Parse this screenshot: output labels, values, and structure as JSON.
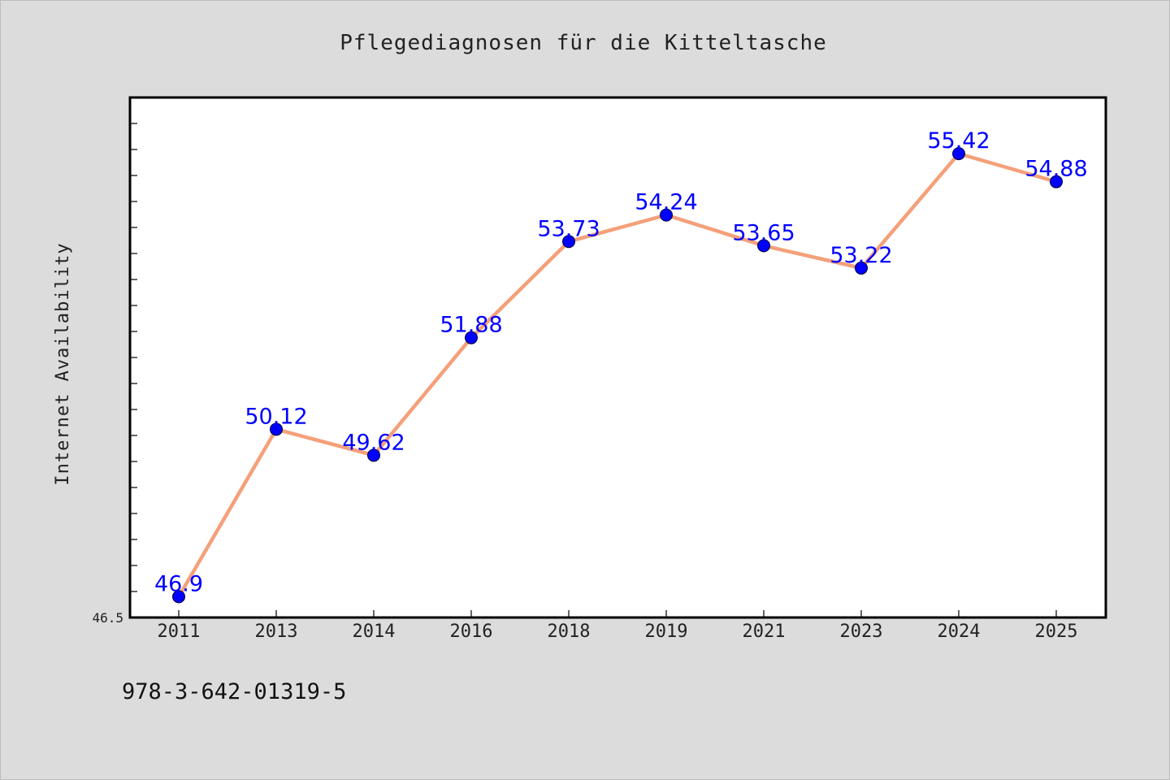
{
  "chart_data": {
    "type": "line",
    "title": "Pflegediagnosen für die Kitteltasche",
    "xlabel": "",
    "ylabel": "Internet Availability",
    "categories": [
      "2011",
      "2013",
      "2014",
      "2016",
      "2018",
      "2019",
      "2021",
      "2023",
      "2024",
      "2025"
    ],
    "series": [
      {
        "values": [
          46.9,
          50.12,
          49.62,
          51.88,
          53.73,
          54.24,
          53.65,
          53.22,
          55.42,
          54.88
        ],
        "labels": [
          "46.9",
          "50.12",
          "49.62",
          "51.88",
          "53.73",
          "54.24",
          "53.65",
          "53.22",
          "55.42",
          "54.88"
        ]
      }
    ],
    "ylim": [
      46.5,
      56.5
    ],
    "y_tick_labels": [
      "46.5"
    ],
    "grid": false,
    "legend": "none",
    "colors": {
      "line": "#f4a07a",
      "marker": "#0000ff",
      "data_label": "#0000ff",
      "plot_background": "#ffffff",
      "page_background": "#dcdcdc"
    }
  },
  "footer": {
    "code": "978-3-642-01319-5"
  }
}
